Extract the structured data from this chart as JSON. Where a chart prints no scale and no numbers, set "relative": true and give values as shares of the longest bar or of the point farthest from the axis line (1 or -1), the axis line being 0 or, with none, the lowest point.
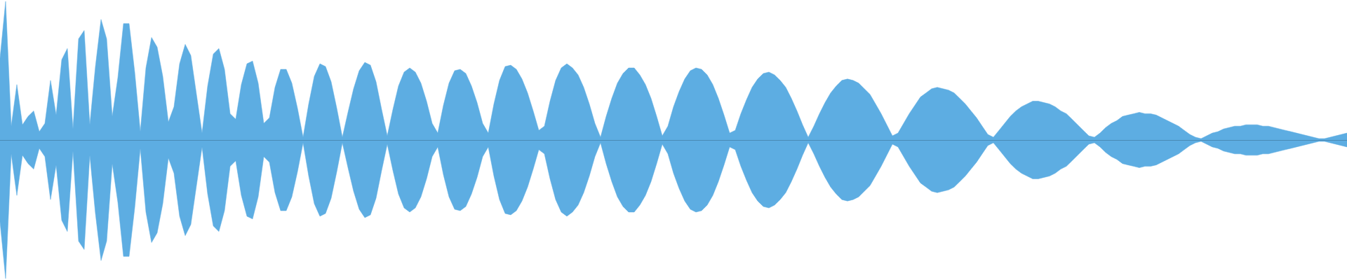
{
  "chart_data": {
    "type": "area",
    "relative": true,
    "categories": [
      null,
      null,
      null,
      null,
      null,
      null,
      null,
      null,
      null,
      null,
      null,
      null,
      null,
      null,
      null,
      null,
      null,
      null,
      null,
      null,
      null,
      null,
      null,
      null,
      null,
      null,
      null,
      null,
      null,
      null,
      null,
      null,
      null,
      null,
      null,
      null,
      null,
      null,
      null,
      null,
      null,
      null,
      null,
      null,
      null,
      null,
      null,
      null,
      null,
      null,
      null,
      null,
      null,
      null,
      null,
      null,
      null,
      null,
      null,
      null,
      null,
      null,
      null,
      null,
      null,
      null,
      null,
      null,
      null,
      null,
      null,
      null,
      null,
      null,
      null,
      null,
      null,
      null,
      null,
      null,
      null,
      null,
      null,
      null,
      null,
      null,
      null,
      null,
      null,
      null,
      null,
      null,
      null,
      null,
      null,
      null,
      null,
      null,
      null,
      null,
      null,
      null,
      null,
      null,
      null,
      null,
      null,
      null,
      null,
      null,
      null,
      null,
      null,
      null,
      null,
      null,
      null,
      null,
      null,
      null,
      null,
      null,
      null,
      null,
      null,
      null,
      null,
      null,
      null,
      null,
      null,
      null,
      null,
      null,
      null,
      null,
      null,
      null,
      null,
      null,
      null,
      null,
      null,
      null,
      null,
      null,
      null,
      null,
      null,
      null,
      null,
      null,
      null,
      null,
      null,
      null,
      null,
      null,
      null,
      null,
      null,
      null,
      null,
      null,
      null,
      null,
      null,
      null,
      null,
      null,
      null,
      null,
      null,
      null,
      null,
      null,
      null,
      null,
      null,
      null,
      null,
      null,
      null,
      null,
      null,
      null,
      null,
      null,
      null,
      null,
      null,
      null,
      null,
      null,
      null,
      null,
      null,
      null,
      null,
      null,
      null,
      null,
      null,
      null,
      null,
      null,
      null,
      null,
      null,
      null,
      null,
      null,
      null,
      null,
      null,
      null,
      null,
      null,
      null,
      null,
      null,
      null,
      null,
      null,
      null,
      null,
      null,
      null,
      null,
      null,
      null,
      null,
      null,
      null,
      null,
      null,
      null,
      null,
      null,
      null,
      null
    ],
    "series": [
      {
        "color": "#5dade2",
        "values": [
          0.59,
          1,
          0.1,
          0.4,
          0.11,
          0.17,
          0.21,
          0.06,
          0.12,
          0.43,
          0.18,
          0.58,
          0.66,
          0.08,
          0.73,
          0.79,
          0.11,
          0.53,
          0.87,
          0.73,
          0.17,
          0.45,
          0.84,
          0.84,
          0.49,
          0.06,
          0.52,
          0.74,
          0.67,
          0.46,
          0.13,
          0.24,
          0.55,
          0.69,
          0.61,
          0.33,
          0.05,
          0.39,
          0.62,
          0.66,
          0.51,
          0.19,
          0.15,
          0.4,
          0.55,
          0.57,
          0.41,
          0.12,
          0.16,
          0.38,
          0.51,
          0.51,
          0.41,
          0.23,
          0.02,
          0.26,
          0.46,
          0.55,
          0.53,
          0.42,
          0.23,
          0.02,
          0.2,
          0.37,
          0.5,
          0.56,
          0.54,
          0.42,
          0.22,
          0.03,
          0.22,
          0.39,
          0.49,
          0.52,
          0.49,
          0.41,
          0.28,
          0.12,
          0.05,
          0.25,
          0.41,
          0.5,
          0.51,
          0.48,
          0.39,
          0.27,
          0.12,
          0.05,
          0.26,
          0.43,
          0.53,
          0.54,
          0.51,
          0.44,
          0.34,
          0.21,
          0.07,
          0.1,
          0.28,
          0.43,
          0.52,
          0.55,
          0.52,
          0.47,
          0.38,
          0.26,
          0.12,
          0.02,
          0.17,
          0.3,
          0.41,
          0.48,
          0.52,
          0.52,
          0.47,
          0.4,
          0.3,
          0.17,
          0.03,
          0.1,
          0.24,
          0.35,
          0.44,
          0.5,
          0.52,
          0.51,
          0.47,
          0.4,
          0.3,
          0.18,
          0.05,
          0.07,
          0.19,
          0.29,
          0.38,
          0.44,
          0.48,
          0.49,
          0.47,
          0.43,
          0.38,
          0.3,
          0.21,
          0.11,
          0.02,
          0.1,
          0.19,
          0.27,
          0.34,
          0.39,
          0.43,
          0.44,
          0.43,
          0.41,
          0.37,
          0.33,
          0.26,
          0.19,
          0.11,
          0.03,
          0.05,
          0.12,
          0.19,
          0.25,
          0.31,
          0.34,
          0.37,
          0.38,
          0.37,
          0.36,
          0.34,
          0.3,
          0.26,
          0.21,
          0.16,
          0.1,
          0.04,
          0.02,
          0.07,
          0.12,
          0.17,
          0.21,
          0.24,
          0.26,
          0.28,
          0.28,
          0.27,
          0.26,
          0.24,
          0.21,
          0.19,
          0.15,
          0.11,
          0.07,
          0.03,
          0.02,
          0.05,
          0.09,
          0.12,
          0.14,
          0.17,
          0.18,
          0.19,
          0.2,
          0.19,
          0.19,
          0.18,
          0.16,
          0.14,
          0.12,
          0.1,
          0.07,
          0.04,
          0.02,
          0.01,
          0.03,
          0.05,
          0.06,
          0.08,
          0.09,
          0.1,
          0.1,
          0.11,
          0.11,
          0.11,
          0.1,
          0.1,
          0.09,
          0.08,
          0.07,
          0.06,
          0.05,
          0.04,
          0.03,
          0.02,
          0.01,
          0.01,
          0.02,
          0.03,
          0.04,
          0.05
        ]
      },
      {
        "color": "#5dade2",
        "values": [
          -0.59,
          -1,
          -0.1,
          -0.4,
          -0.11,
          -0.17,
          -0.21,
          -0.06,
          -0.12,
          -0.43,
          -0.18,
          -0.58,
          -0.66,
          -0.08,
          -0.73,
          -0.79,
          -0.11,
          -0.53,
          -0.87,
          -0.73,
          -0.17,
          -0.45,
          -0.84,
          -0.84,
          -0.49,
          -0.06,
          -0.52,
          -0.74,
          -0.67,
          -0.46,
          -0.13,
          -0.24,
          -0.55,
          -0.69,
          -0.61,
          -0.33,
          -0.05,
          -0.39,
          -0.62,
          -0.66,
          -0.51,
          -0.19,
          -0.15,
          -0.4,
          -0.55,
          -0.57,
          -0.41,
          -0.12,
          -0.16,
          -0.38,
          -0.51,
          -0.51,
          -0.41,
          -0.23,
          -0.02,
          -0.26,
          -0.46,
          -0.55,
          -0.53,
          -0.42,
          -0.23,
          -0.02,
          -0.2,
          -0.37,
          -0.5,
          -0.56,
          -0.54,
          -0.42,
          -0.22,
          -0.03,
          -0.22,
          -0.39,
          -0.49,
          -0.52,
          -0.49,
          -0.41,
          -0.28,
          -0.12,
          -0.05,
          -0.25,
          -0.41,
          -0.5,
          -0.51,
          -0.48,
          -0.39,
          -0.27,
          -0.12,
          -0.05,
          -0.26,
          -0.43,
          -0.53,
          -0.54,
          -0.51,
          -0.44,
          -0.34,
          -0.21,
          -0.07,
          -0.1,
          -0.28,
          -0.43,
          -0.52,
          -0.55,
          -0.52,
          -0.47,
          -0.38,
          -0.26,
          -0.12,
          -0.02,
          -0.17,
          -0.3,
          -0.41,
          -0.48,
          -0.52,
          -0.52,
          -0.47,
          -0.4,
          -0.3,
          -0.17,
          -0.03,
          -0.1,
          -0.24,
          -0.35,
          -0.44,
          -0.5,
          -0.52,
          -0.51,
          -0.47,
          -0.4,
          -0.3,
          -0.18,
          -0.05,
          -0.07,
          -0.19,
          -0.29,
          -0.38,
          -0.44,
          -0.48,
          -0.49,
          -0.47,
          -0.43,
          -0.38,
          -0.3,
          -0.21,
          -0.11,
          -0.02,
          -0.1,
          -0.19,
          -0.27,
          -0.34,
          -0.39,
          -0.43,
          -0.44,
          -0.43,
          -0.41,
          -0.37,
          -0.33,
          -0.26,
          -0.19,
          -0.11,
          -0.03,
          -0.05,
          -0.12,
          -0.19,
          -0.25,
          -0.31,
          -0.34,
          -0.37,
          -0.38,
          -0.37,
          -0.36,
          -0.34,
          -0.3,
          -0.26,
          -0.21,
          -0.16,
          -0.1,
          -0.04,
          -0.02,
          -0.07,
          -0.12,
          -0.17,
          -0.21,
          -0.24,
          -0.26,
          -0.28,
          -0.28,
          -0.27,
          -0.26,
          -0.24,
          -0.21,
          -0.19,
          -0.15,
          -0.11,
          -0.07,
          -0.03,
          -0.02,
          -0.05,
          -0.09,
          -0.12,
          -0.14,
          -0.17,
          -0.18,
          -0.19,
          -0.2,
          -0.19,
          -0.19,
          -0.18,
          -0.16,
          -0.14,
          -0.12,
          -0.1,
          -0.07,
          -0.04,
          -0.02,
          -0.01,
          -0.03,
          -0.05,
          -0.06,
          -0.08,
          -0.09,
          -0.1,
          -0.1,
          -0.11,
          -0.11,
          -0.11,
          -0.1,
          -0.1,
          -0.09,
          -0.08,
          -0.07,
          -0.06,
          -0.05,
          -0.04,
          -0.03,
          -0.02,
          -0.01,
          -0.01,
          -0.02,
          -0.03,
          -0.04,
          -0.05
        ]
      }
    ],
    "ref_lines": [
      {
        "axis": "y",
        "value": 0,
        "color": "#4a8ab5"
      }
    ]
  }
}
